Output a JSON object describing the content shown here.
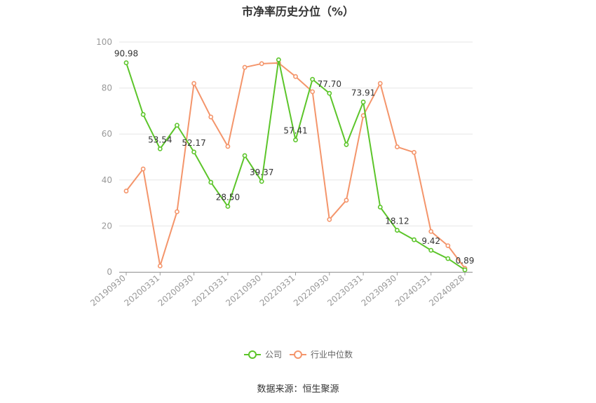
{
  "chart_data": {
    "type": "line",
    "title": "市净率历史分位（%）",
    "ylim": [
      0,
      100
    ],
    "yticks": [
      0,
      20,
      40,
      60,
      80,
      100
    ],
    "x_tick_labels": [
      "20190930",
      "20200331",
      "20200930",
      "20210331",
      "20210930",
      "20220331",
      "20220930",
      "20230331",
      "20230930",
      "20240331",
      "20240828"
    ],
    "x_tick_indices": [
      0,
      2,
      4,
      6,
      8,
      10,
      12,
      14,
      16,
      18,
      20
    ],
    "grid": true,
    "legend_position": "bottom-center",
    "series": [
      {
        "name": "公司",
        "color": "#5cc52a",
        "values": [
          90.98,
          68.5,
          53.54,
          63.8,
          52.17,
          39.0,
          28.5,
          50.6,
          39.37,
          92.3,
          57.41,
          83.8,
          77.7,
          55.4,
          73.91,
          28.2,
          18.12,
          14.0,
          9.42,
          5.8,
          0.89
        ],
        "labels": {
          "0": "90.98",
          "2": "53.54",
          "4": "52.17",
          "6": "28.50",
          "8": "39.37",
          "10": "57.41",
          "12": "77.70",
          "14": "73.91",
          "16": "18.12",
          "18": "9.42",
          "20": "0.89"
        }
      },
      {
        "name": "行业中位数",
        "color": "#f4956b",
        "values": [
          35.2,
          44.8,
          2.6,
          26.2,
          82.0,
          67.4,
          54.6,
          89.0,
          90.6,
          90.9,
          85.0,
          78.4,
          22.8,
          31.2,
          68.0,
          82.0,
          54.4,
          52.0,
          17.6,
          11.4,
          1.6
        ]
      }
    ]
  },
  "source": "数据来源：恒生聚源"
}
